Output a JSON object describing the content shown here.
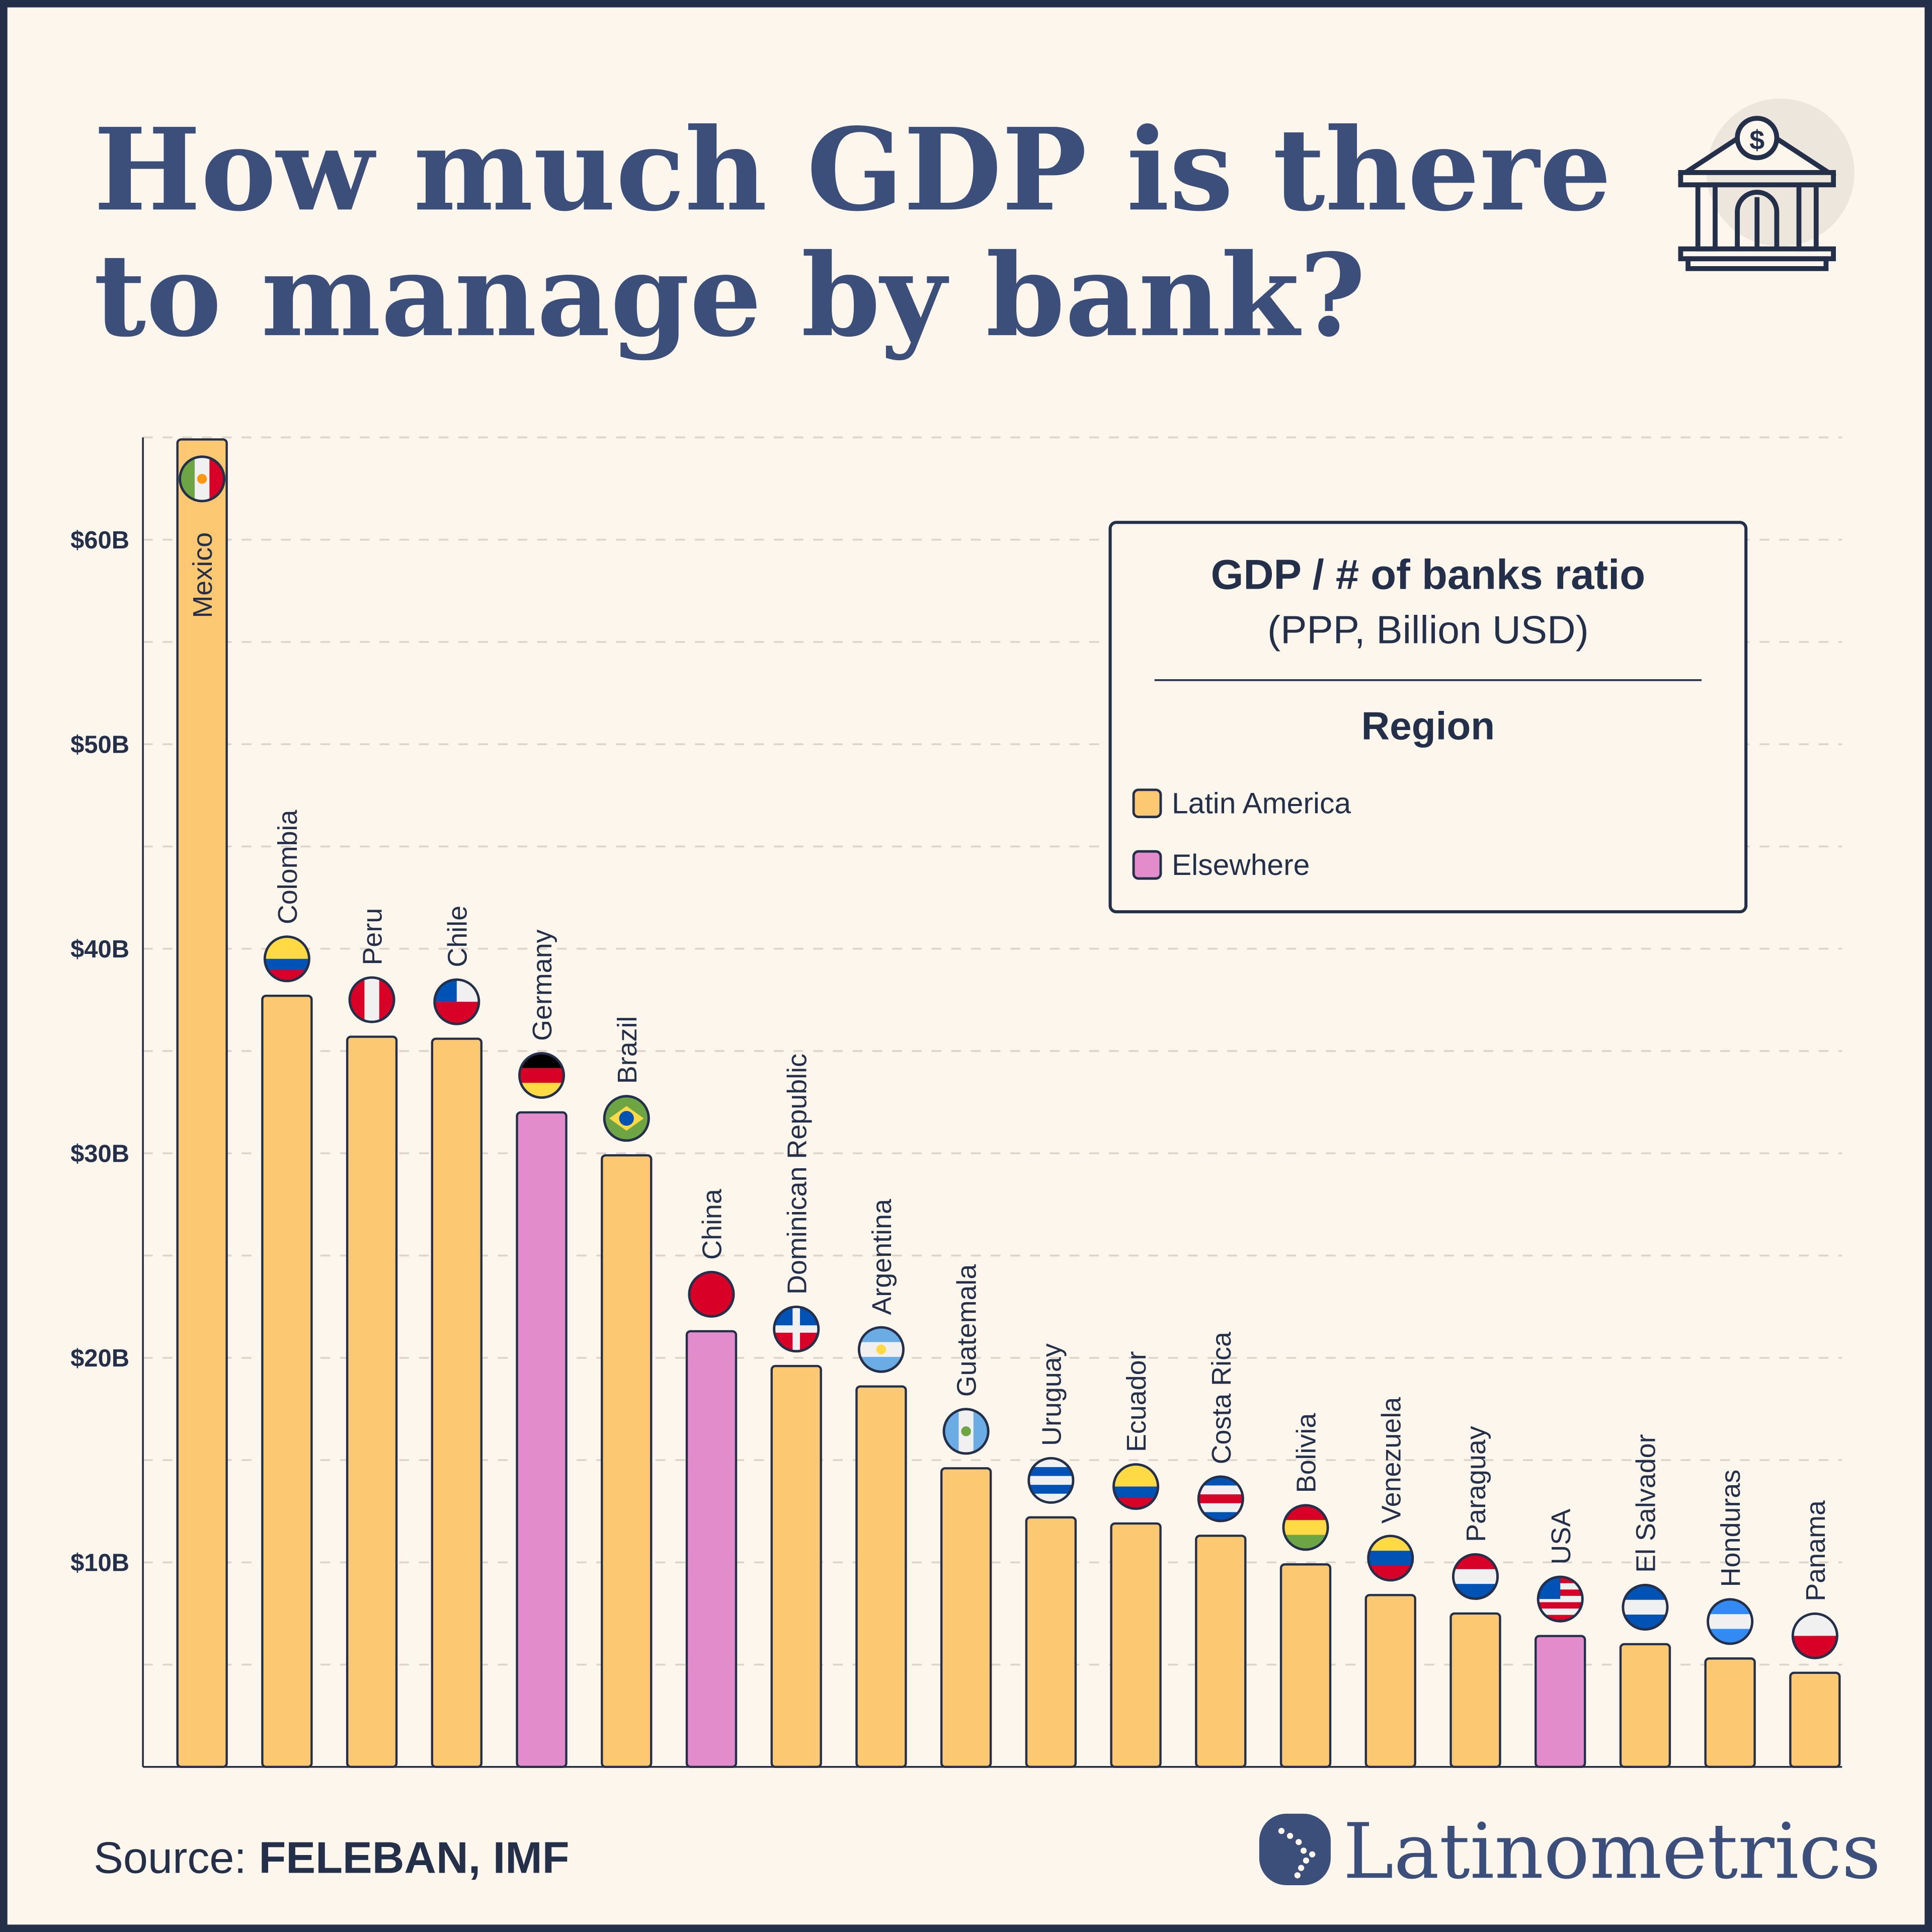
{
  "title_lines": [
    "How much GDP is there",
    "to manage by bank?"
  ],
  "source": {
    "prefix": "Source: ",
    "value": "FELEBAN, IMF"
  },
  "brand": "Latinometrics",
  "icons": {
    "header": "bank-dollar-icon",
    "brand": "latin-america-map-icon"
  },
  "colors": {
    "background": "#fdf6ec",
    "ink": "#243049",
    "title": "#3b4f7a",
    "Latin America": "#fdc872",
    "Elsewhere": "#e28ccc"
  },
  "chart_data": {
    "type": "bar",
    "title": "GDP / # of banks ratio",
    "subtitle": "(PPP, Billion USD)",
    "legend_title": "Region",
    "legend_placement": "top-right",
    "legend": [
      "Latin America",
      "Elsewhere"
    ],
    "ylim": [
      0,
      65
    ],
    "yticks": [
      10,
      20,
      30,
      40,
      50,
      60
    ],
    "ytick_labels": [
      "$10B",
      "$20B",
      "$30B",
      "$40B",
      "$50B",
      "$60B"
    ],
    "grid": "dashed horizontal every 5",
    "categories": [
      "Mexico",
      "Colombia",
      "Peru",
      "Chile",
      "Germany",
      "Brazil",
      "China",
      "Dominican Republic",
      "Argentina",
      "Guatemala",
      "Uruguay",
      "Ecuador",
      "Costa Rica",
      "Bolivia",
      "Venezuela",
      "Paraguay",
      "USA",
      "El Salvador",
      "Honduras",
      "Panama"
    ],
    "values": [
      64.9,
      37.7,
      35.7,
      35.6,
      32.0,
      29.9,
      21.3,
      19.6,
      18.6,
      14.6,
      12.2,
      11.9,
      11.3,
      9.9,
      8.4,
      7.5,
      6.4,
      6.0,
      5.3,
      4.6
    ],
    "region": [
      "Latin America",
      "Latin America",
      "Latin America",
      "Latin America",
      "Elsewhere",
      "Latin America",
      "Elsewhere",
      "Latin America",
      "Latin America",
      "Latin America",
      "Latin America",
      "Latin America",
      "Latin America",
      "Latin America",
      "Latin America",
      "Latin America",
      "Elsewhere",
      "Latin America",
      "Latin America",
      "Latin America"
    ]
  }
}
